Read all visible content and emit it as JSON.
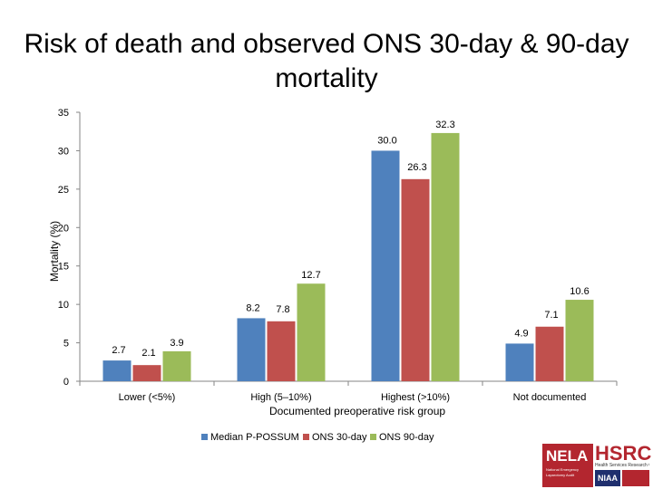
{
  "title": "Risk of death and observed ONS 30-day & 90-day mortality",
  "logos": {
    "nela": "NELA",
    "nela_sub": "National Emergency Laparotomy Audit",
    "hsrc": "HSRC",
    "hsrc_sub": "Health Services Research Centre",
    "niaa": "NIAA"
  },
  "chart_data": {
    "type": "bar",
    "title": "Risk of death and observed ONS 30-day & 90-day mortality",
    "xlabel": "Documented preoperative risk group",
    "ylabel": "Mortality (%)",
    "ylim": [
      0,
      35
    ],
    "yticks": [
      0,
      5,
      10,
      15,
      20,
      25,
      30,
      35
    ],
    "grid": false,
    "legend": "bottom",
    "categories": [
      "Lower (<5%)",
      "High (5–10%)",
      "Highest (>10%)",
      "Not documented"
    ],
    "series": [
      {
        "name": "Median P-POSSUM",
        "color": "#4f81bd",
        "values": [
          2.7,
          8.2,
          30.0,
          4.9
        ],
        "labels": [
          "2.7",
          "8.2",
          "30.0",
          "4.9"
        ]
      },
      {
        "name": "ONS 30-day",
        "color": "#c0504d",
        "values": [
          2.1,
          7.8,
          26.3,
          7.1
        ],
        "labels": [
          "2.1",
          "7.8",
          "26.3",
          "7.1"
        ]
      },
      {
        "name": "ONS 90-day",
        "color": "#9bbb59",
        "values": [
          3.9,
          12.7,
          32.3,
          10.6
        ],
        "labels": [
          "3.9",
          "12.7",
          "32.3",
          "10.6"
        ]
      }
    ]
  }
}
